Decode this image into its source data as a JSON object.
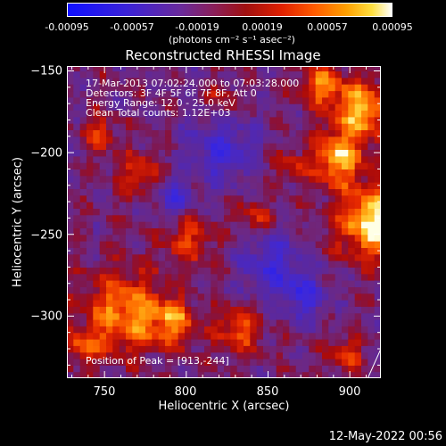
{
  "colorbar": {
    "ticks": [
      "-0.00095",
      "-0.00057",
      "-0.00019",
      "0.00019",
      "0.00057",
      "0.00095"
    ],
    "unit": "(photons cm⁻² s⁻¹ asec⁻²)"
  },
  "chart_data": {
    "type": "heatmap",
    "title": "Reconstructed RHESSI Image",
    "xlabel": "Heliocentric X (arcsec)",
    "ylabel": "Heliocentric Y (arcsec)",
    "xlim": [
      727,
      919
    ],
    "ylim": [
      -338,
      -147
    ],
    "xticks": [
      "750",
      "800",
      "850",
      "900"
    ],
    "yticks": [
      "−150",
      "−200",
      "−250",
      "−300"
    ],
    "zlim": [
      -0.00095,
      0.00095
    ],
    "annotations": [
      "17-Mar-2013 07:02:24.000 to 07:03:28.000",
      "Detectors: 3F 4F 5F 6F 7F 8F, Att 0",
      "Energy Range: 12.0 - 25.0 keV",
      "Clean    Total counts: 1.12E+03"
    ],
    "peak_label": "Position of Peak = [913,-244]",
    "peak_position": [
      913,
      -244
    ],
    "limb_line": [
      [
        911,
        -338
      ],
      [
        919,
        -320
      ]
    ]
  },
  "footer": {
    "timestamp": "12-May-2022 00:56"
  }
}
